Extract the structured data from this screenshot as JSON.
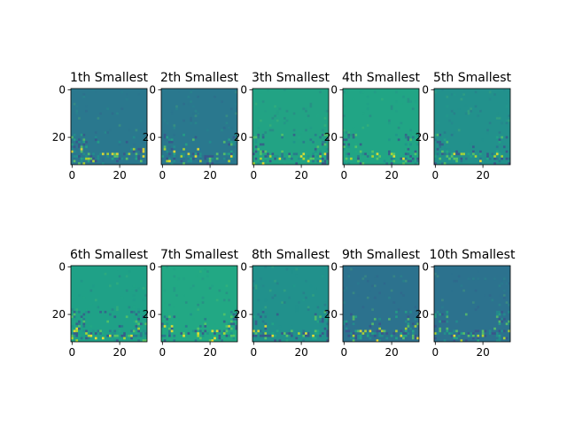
{
  "chart_data": {
    "type": "heatmap",
    "layout": "2x5 image grid",
    "panels": [
      {
        "title": "1th Smallest",
        "base": "#2a788e",
        "xticks": [
          "0",
          "20"
        ],
        "yticks": [
          "0",
          "20"
        ],
        "xlim": [
          0,
          31
        ],
        "ylim": [
          31,
          0
        ]
      },
      {
        "title": "2th Smallest",
        "base": "#2a788e",
        "xticks": [
          "0",
          "20"
        ],
        "yticks": [
          "0",
          "20"
        ],
        "xlim": [
          0,
          31
        ],
        "ylim": [
          31,
          0
        ]
      },
      {
        "title": "3th Smallest",
        "base": "#22a384",
        "xticks": [
          "0",
          "20"
        ],
        "yticks": [
          "0",
          "20"
        ],
        "xlim": [
          0,
          31
        ],
        "ylim": [
          31,
          0
        ]
      },
      {
        "title": "4th Smallest",
        "base": "#21a585",
        "xticks": [
          "0",
          "20"
        ],
        "yticks": [
          "0",
          "20"
        ],
        "xlim": [
          0,
          31
        ],
        "ylim": [
          31,
          0
        ]
      },
      {
        "title": "5th Smallest",
        "base": "#22918c",
        "xticks": [
          "0",
          "20"
        ],
        "yticks": [
          "0",
          "20"
        ],
        "xlim": [
          0,
          31
        ],
        "ylim": [
          31,
          0
        ]
      },
      {
        "title": "6th Smallest",
        "base": "#1fa187",
        "xticks": [
          "0",
          "20"
        ],
        "yticks": [
          "0",
          "20"
        ],
        "xlim": [
          0,
          31
        ],
        "ylim": [
          31,
          0
        ]
      },
      {
        "title": "7th Smallest",
        "base": "#22a884",
        "xticks": [
          "0",
          "20"
        ],
        "yticks": [
          "0",
          "20"
        ],
        "xlim": [
          0,
          31
        ],
        "ylim": [
          31,
          0
        ]
      },
      {
        "title": "8th Smallest",
        "base": "#21918c",
        "xticks": [
          "0",
          "20"
        ],
        "yticks": [
          "0",
          "20"
        ],
        "xlim": [
          0,
          31
        ],
        "ylim": [
          31,
          0
        ]
      },
      {
        "title": "9th Smallest",
        "base": "#2c728e",
        "xticks": [
          "0",
          "20"
        ],
        "yticks": [
          "0",
          "20"
        ],
        "xlim": [
          0,
          31
        ],
        "ylim": [
          31,
          0
        ]
      },
      {
        "title": "10th Smallest",
        "base": "#2c728e",
        "xticks": [
          "0",
          "20"
        ],
        "yticks": [
          "0",
          "20"
        ],
        "xlim": [
          0,
          31
        ],
        "ylim": [
          31,
          0
        ]
      }
    ],
    "colormap": "viridis",
    "grid": false,
    "legend": "none"
  }
}
